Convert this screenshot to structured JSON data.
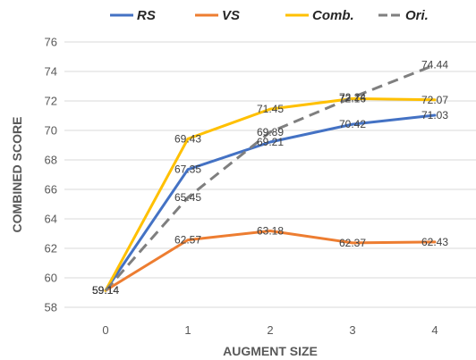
{
  "chart_data": {
    "type": "line",
    "x": [
      0,
      1,
      2,
      3,
      4
    ],
    "categories": [
      "0",
      "1",
      "2",
      "3",
      "4"
    ],
    "xlabel": "AUGMENT SIZE",
    "ylabel": "COMBINED SCORE",
    "ylim": [
      58,
      76
    ],
    "yticks": [
      58,
      60,
      62,
      64,
      66,
      68,
      70,
      72,
      74,
      76
    ],
    "grid": true,
    "legend_position": "top",
    "series": [
      {
        "name": "RS",
        "color": "#4472c4",
        "dash": "solid",
        "values": [
          59.14,
          67.35,
          69.21,
          70.42,
          71.03
        ]
      },
      {
        "name": "VS",
        "color": "#ed7d31",
        "dash": "solid",
        "values": [
          59.14,
          62.57,
          63.18,
          62.37,
          62.43
        ]
      },
      {
        "name": "Comb.",
        "color": "#ffc000",
        "dash": "solid",
        "values": [
          59.14,
          69.43,
          71.45,
          72.16,
          72.07
        ]
      },
      {
        "name": "Ori.",
        "color": "#7f7f7f",
        "dash": "dashed",
        "values": [
          59.14,
          65.45,
          69.89,
          72.24,
          74.44
        ]
      }
    ]
  }
}
